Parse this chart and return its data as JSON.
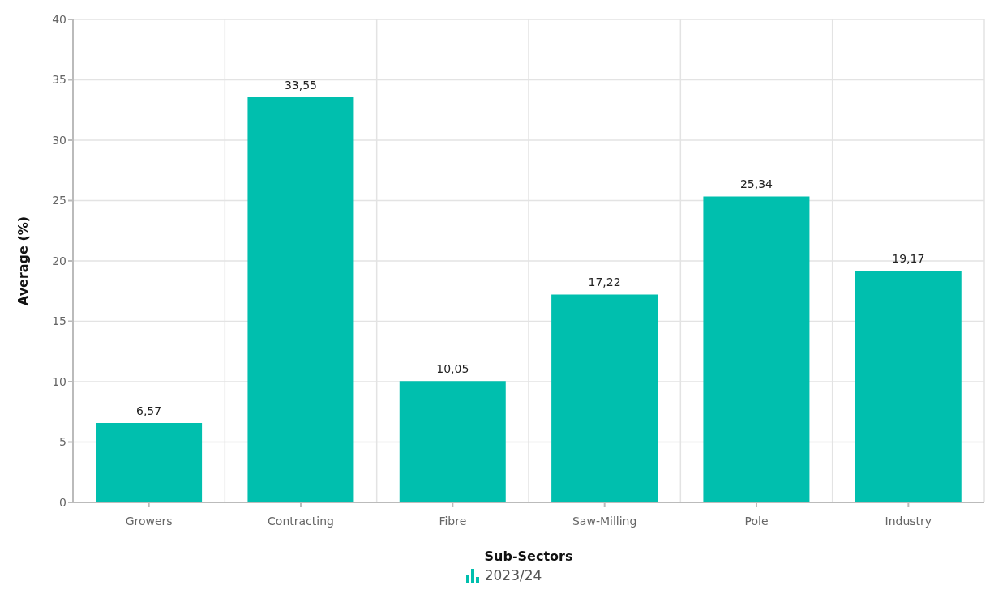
{
  "chart_data": {
    "type": "bar",
    "xlabel": "Sub-Sectors",
    "ylabel": "Average (%)",
    "categories": [
      "Growers",
      "Contracting",
      "Fibre",
      "Saw-Milling",
      "Pole",
      "Industry"
    ],
    "series": [
      {
        "name": "2023/24",
        "color": "#00bfae",
        "values": [
          6.57,
          33.55,
          10.05,
          17.22,
          25.34,
          19.17
        ],
        "value_labels": [
          "6,57",
          "33,55",
          "10,05",
          "17,22",
          "25,34",
          "19,17"
        ]
      }
    ],
    "ylim": [
      0,
      40
    ],
    "yticks": [
      0,
      5,
      10,
      15,
      20,
      25,
      30,
      35,
      40
    ],
    "grid": true,
    "legend": "bottom"
  }
}
